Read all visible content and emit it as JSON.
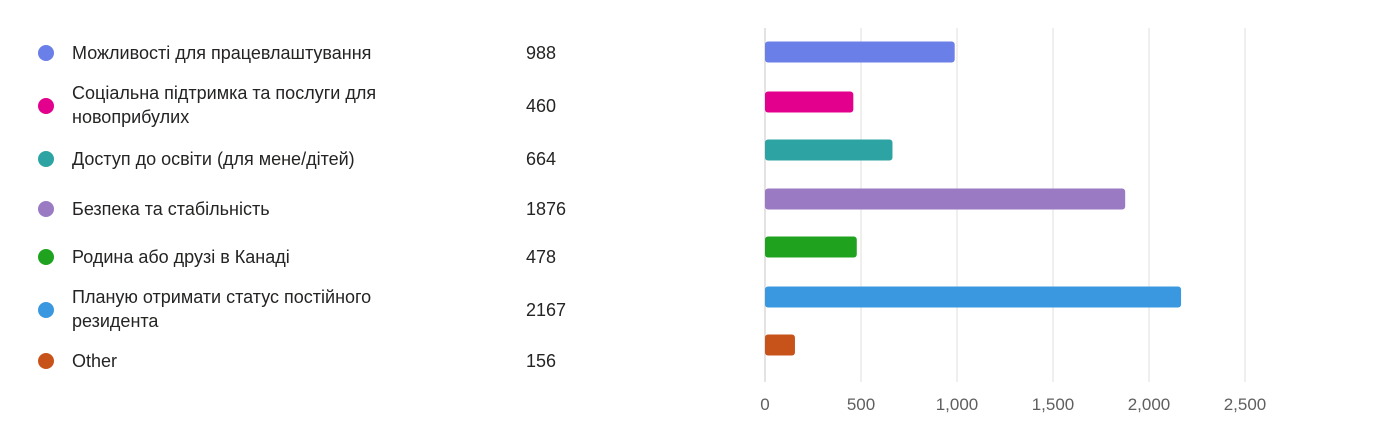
{
  "chart_data": {
    "type": "bar",
    "orientation": "horizontal",
    "categories": [
      "Можливості для працевлаштування",
      "Соціальна підтримка та послуги для новоприбулих",
      "Доступ до освіти (для мене/дітей)",
      "Безпека та стабільність",
      "Родина або друзі в Канаді",
      "Планую отримати статус постійного резидента",
      "Other"
    ],
    "values": [
      988,
      460,
      664,
      1876,
      478,
      2167,
      156
    ],
    "colors": [
      "#6b7fe8",
      "#e3008c",
      "#2ea3a3",
      "#9b7ac4",
      "#1fa31f",
      "#3a98e0",
      "#c8531a"
    ],
    "xlim": [
      0,
      2500
    ],
    "xticks": [
      0,
      500,
      1000,
      1500,
      2000,
      2500
    ],
    "xtick_labels": [
      "0",
      "500",
      "1,000",
      "1,500",
      "2,000",
      "2,500"
    ],
    "grid": "vertical",
    "legend_placement": "left"
  },
  "legend": {
    "items": [
      {
        "label": "Можливості для працевлаштування",
        "count": "988",
        "color": "#6b7fe8"
      },
      {
        "label": "Соціальна підтримка та послуги для новоприбулих",
        "count": "460",
        "color": "#e3008c"
      },
      {
        "label": "Доступ до освіти (для мене/дітей)",
        "count": "664",
        "color": "#2ea3a3"
      },
      {
        "label": "Безпека та стабільність",
        "count": "1876",
        "color": "#9b7ac4"
      },
      {
        "label": "Родина або друзі в Канаді",
        "count": "478",
        "color": "#1fa31f"
      },
      {
        "label": "Планую отримати статус постійного резидента",
        "count": "2167",
        "color": "#3a98e0"
      },
      {
        "label": "Other",
        "count": "156",
        "color": "#c8531a"
      }
    ]
  }
}
